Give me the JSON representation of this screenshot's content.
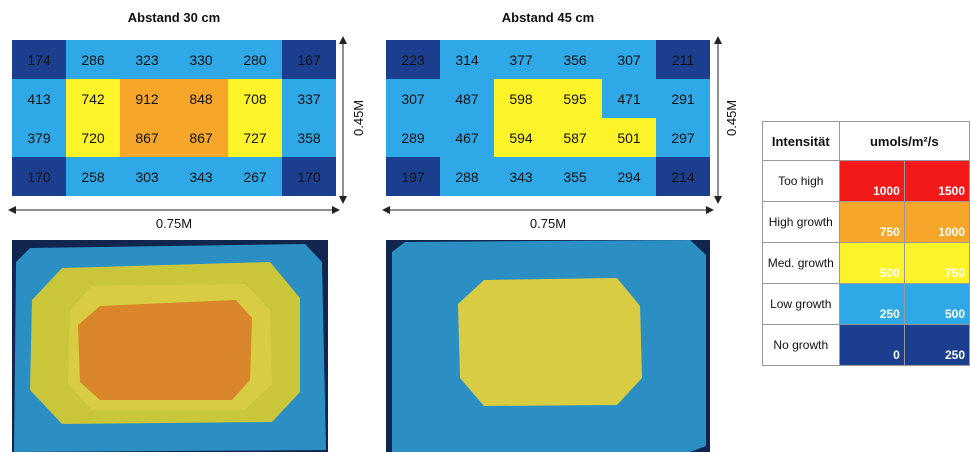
{
  "colors": {
    "no_growth": "#1b3f8e",
    "low_growth": "#2ea8e6",
    "med_growth": "#fcf428",
    "high_growth": "#f6a72a",
    "too_high": "#f41a1a"
  },
  "chart_data": [
    {
      "type": "heatmap",
      "title": "Abstand 30 cm",
      "xlabel": "0.75M",
      "ylabel": "0.45M",
      "rows": [
        [
          174,
          286,
          323,
          330,
          280,
          167
        ],
        [
          413,
          742,
          912,
          848,
          708,
          337
        ],
        [
          379,
          720,
          867,
          867,
          727,
          358
        ],
        [
          170,
          258,
          303,
          343,
          267,
          170
        ]
      ]
    },
    {
      "type": "heatmap",
      "title": "Abstand 45 cm",
      "xlabel": "0.75M",
      "ylabel": "0.45M",
      "rows": [
        [
          223,
          314,
          377,
          356,
          307,
          211
        ],
        [
          307,
          487,
          598,
          595,
          471,
          291
        ],
        [
          289,
          467,
          594,
          587,
          501,
          297
        ],
        [
          197,
          288,
          343,
          355,
          294,
          214
        ]
      ]
    }
  ],
  "legend": {
    "header_label": "Intensität",
    "header_unit": "umols/m²/s",
    "rows": [
      {
        "label": "Too high",
        "low": "1000",
        "high": "1500",
        "color_key": "too_high"
      },
      {
        "label": "High growth",
        "low": "750",
        "high": "1000",
        "color_key": "high_growth"
      },
      {
        "label": "Med. growth",
        "low": "500",
        "high": "750",
        "color_key": "med_growth"
      },
      {
        "label": "Low growth",
        "low": "250",
        "high": "500",
        "color_key": "low_growth"
      },
      {
        "label": "No growth",
        "low": "0",
        "high": "250",
        "color_key": "no_growth"
      }
    ]
  }
}
